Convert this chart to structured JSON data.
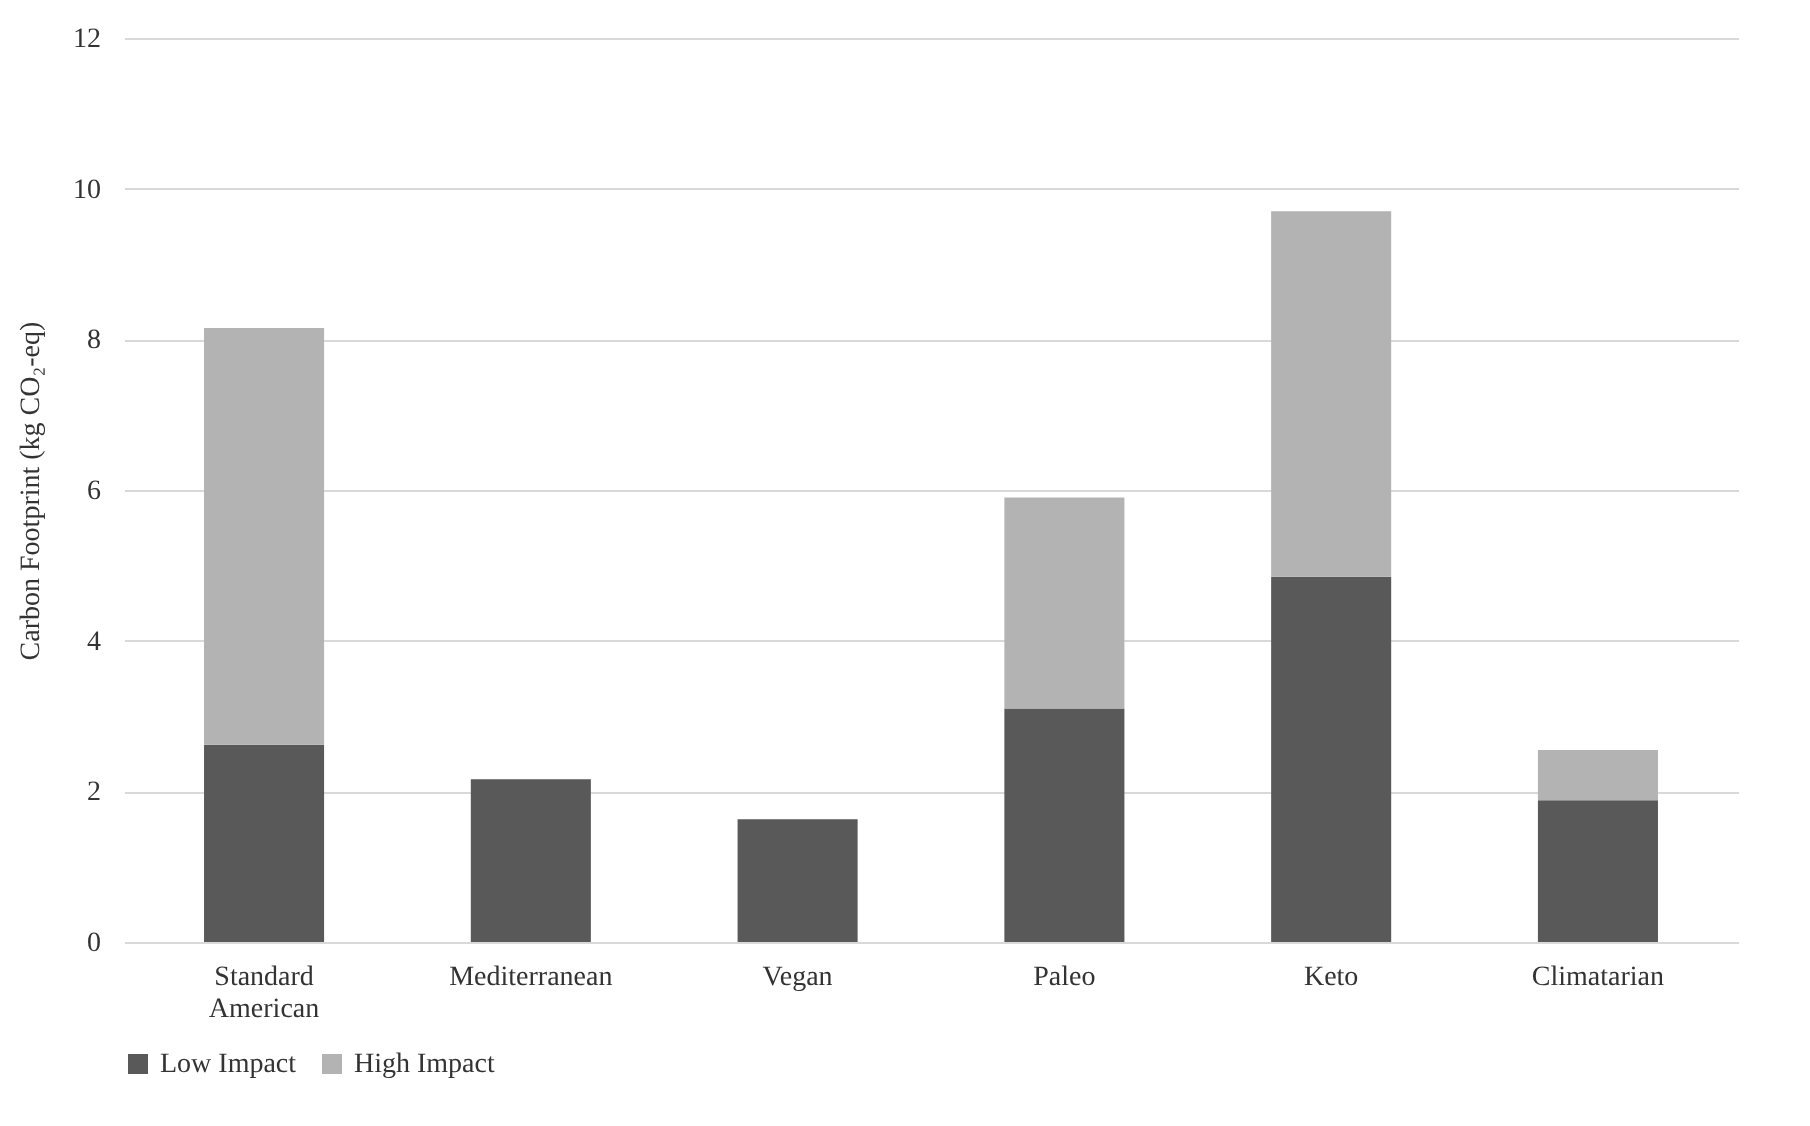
{
  "chart_data": {
    "type": "bar",
    "stacked": true,
    "ylabel": "Carbon Footprint (kg CO₂-eq)",
    "categories": [
      "Standard American",
      "Mediterranean",
      "Vegan",
      "Paleo",
      "Keto",
      "Climatarian"
    ],
    "series": [
      {
        "name": "Low Impact",
        "color": "#595959",
        "values": [
          2.62,
          2.16,
          1.63,
          3.1,
          4.85,
          1.88
        ]
      },
      {
        "name": "High Impact",
        "color": "#b3b3b3",
        "values": [
          5.53,
          null,
          null,
          2.8,
          4.85,
          0.67
        ]
      }
    ],
    "ylim": [
      0,
      12
    ],
    "yticks": [
      0,
      2,
      4,
      6,
      8,
      10,
      12
    ],
    "grid": "y",
    "legend": "bottom"
  }
}
